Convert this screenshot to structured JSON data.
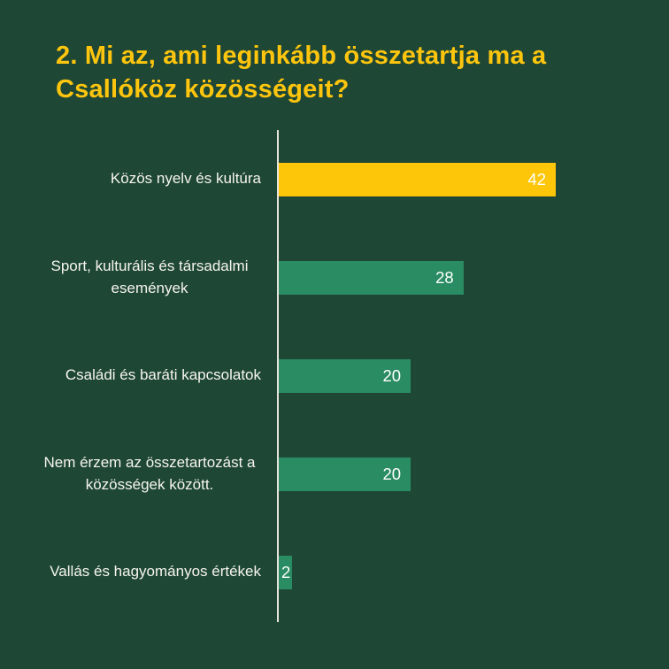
{
  "page": {
    "background_color": "#1E4735",
    "accent_yellow": "#FDC608",
    "accent_green": "#2A8C62",
    "axis_line_color": "#E7E4DC"
  },
  "title": {
    "text": "2. Mi az, ami leginkább összetartja ma a Csallóköz közösségeit?",
    "color": "#FDC50D"
  },
  "chart_data": {
    "type": "bar",
    "orientation": "horizontal",
    "title": "2. Mi az, ami leginkább összetartja ma a Csallóköz közösségeit?",
    "categories": [
      "Közös nyelv és kultúra",
      "Sport, kulturális és társadalmi események",
      "Családi és baráti kapcsolatok",
      "Nem érzem az összetartozást a közösségek között.",
      "Vallás és hagyományos értékek"
    ],
    "values": [
      42,
      28,
      20,
      20,
      2
    ],
    "bar_colors": [
      "#FDC608",
      "#2A8C62",
      "#2A8C62",
      "#2A8C62",
      "#2A8C62"
    ],
    "value_labels": [
      "42",
      "28",
      "20",
      "20",
      "2"
    ],
    "value_label_color": "#FFFFFF",
    "category_label_color": "#F7F5F0",
    "xlim": [
      0,
      42
    ],
    "grid": false,
    "legend": false,
    "axis_baseline": "left"
  }
}
